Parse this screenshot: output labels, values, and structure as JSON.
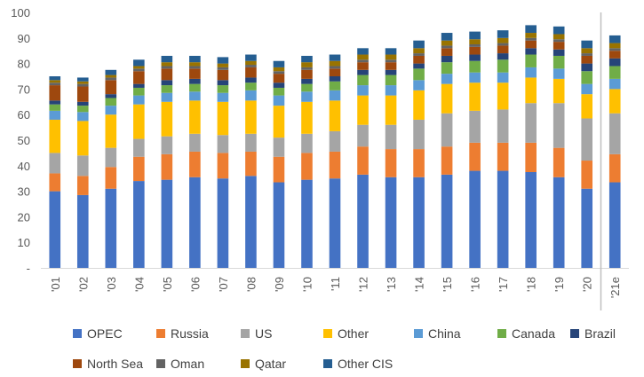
{
  "chart_data": {
    "type": "bar",
    "stacked": true,
    "title": "",
    "xlabel": "",
    "ylabel": "",
    "ylim": [
      0,
      100
    ],
    "yticks": [
      0,
      10,
      20,
      30,
      40,
      50,
      60,
      70,
      80,
      90,
      100
    ],
    "ytick_labels": [
      "-",
      "10",
      "20",
      "30",
      "40",
      "50",
      "60",
      "70",
      "80",
      "90",
      "100"
    ],
    "grid": false,
    "legend_position": "bottom",
    "divider_after_category": "'20",
    "categories": [
      "'01",
      "'02",
      "'03",
      "'04",
      "'05",
      "'06",
      "'07",
      "'08",
      "'09",
      "'10",
      "'11",
      "'12",
      "'13",
      "'14",
      "'15",
      "'16",
      "'17",
      "'18",
      "'19",
      "'20",
      "'21e"
    ],
    "series": [
      {
        "name": "OPEC",
        "color": "#4472C4",
        "values": [
          30,
          28.5,
          31,
          34,
          34.5,
          35.5,
          35,
          36,
          33.5,
          34.5,
          35,
          36.5,
          35.5,
          35.5,
          36.5,
          38,
          38,
          37.5,
          35.5,
          31,
          33.5
        ]
      },
      {
        "name": "Russia",
        "color": "#ED7D31",
        "values": [
          7,
          7.5,
          8.5,
          9.5,
          10,
          10,
          10,
          9.5,
          10,
          10.5,
          10.5,
          11,
          11,
          11,
          11,
          11,
          11,
          11.5,
          11.5,
          11,
          11
        ]
      },
      {
        "name": "US",
        "color": "#A5A5A5",
        "values": [
          8,
          8,
          7.5,
          7,
          7,
          7,
          7,
          7,
          7.5,
          7.5,
          8,
          8.5,
          9.5,
          11.5,
          13,
          12.5,
          13,
          15.5,
          17.5,
          16.5,
          16
        ]
      },
      {
        "name": "Other",
        "color": "#FFC000",
        "values": [
          13,
          13.5,
          13,
          13.5,
          13.5,
          13,
          13,
          13,
          12.5,
          12.5,
          12,
          11.5,
          11.5,
          11.5,
          11.5,
          11,
          10.5,
          10,
          9.5,
          9.5,
          9.5
        ]
      },
      {
        "name": "China",
        "color": "#5B9BD5",
        "values": [
          3.5,
          3.5,
          3.5,
          3.5,
          3.5,
          3.5,
          3.5,
          4,
          4,
          4,
          4,
          4,
          4,
          4,
          4,
          4,
          4,
          4,
          4,
          4,
          4
        ]
      },
      {
        "name": "Canada",
        "color": "#70AD47",
        "values": [
          2.5,
          2.5,
          3,
          3,
          3,
          3,
          3,
          3,
          3,
          3,
          3.5,
          4,
          4,
          4.5,
          4.5,
          4.5,
          5,
          5,
          5,
          5,
          5
        ]
      },
      {
        "name": "Brazil",
        "color": "#264478",
        "values": [
          1.5,
          1.5,
          1.5,
          1.5,
          2,
          2,
          2,
          2,
          2,
          2,
          2,
          2,
          2,
          2,
          2.5,
          2.5,
          2.5,
          2.5,
          2.5,
          3,
          3
        ]
      },
      {
        "name": "North Sea",
        "color": "#9E480E",
        "values": [
          6,
          6,
          5.5,
          5,
          4.5,
          4,
          4,
          4,
          3.5,
          3.5,
          3,
          3,
          3,
          3,
          3,
          3,
          3,
          3,
          3,
          3,
          3
        ]
      },
      {
        "name": "Oman",
        "color": "#636363",
        "values": [
          1,
          1,
          1,
          1,
          1,
          1,
          1,
          1,
          1,
          1,
          1,
          1,
          1,
          1,
          1,
          1,
          1,
          1,
          1,
          1,
          1
        ]
      },
      {
        "name": "Qatar",
        "color": "#997300",
        "values": [
          1,
          1,
          1,
          1,
          1.5,
          1.5,
          1.5,
          1.5,
          1.5,
          2,
          2,
          2,
          2,
          2,
          2,
          2,
          2,
          2,
          2,
          2,
          2
        ]
      },
      {
        "name": "Other CIS",
        "color": "#255E91",
        "values": [
          1.5,
          1.5,
          2,
          2.5,
          2.5,
          2.5,
          2.5,
          2.5,
          2.5,
          2.5,
          2.5,
          2.5,
          2.5,
          3,
          3,
          3,
          3,
          3,
          3,
          3,
          3
        ]
      }
    ]
  }
}
